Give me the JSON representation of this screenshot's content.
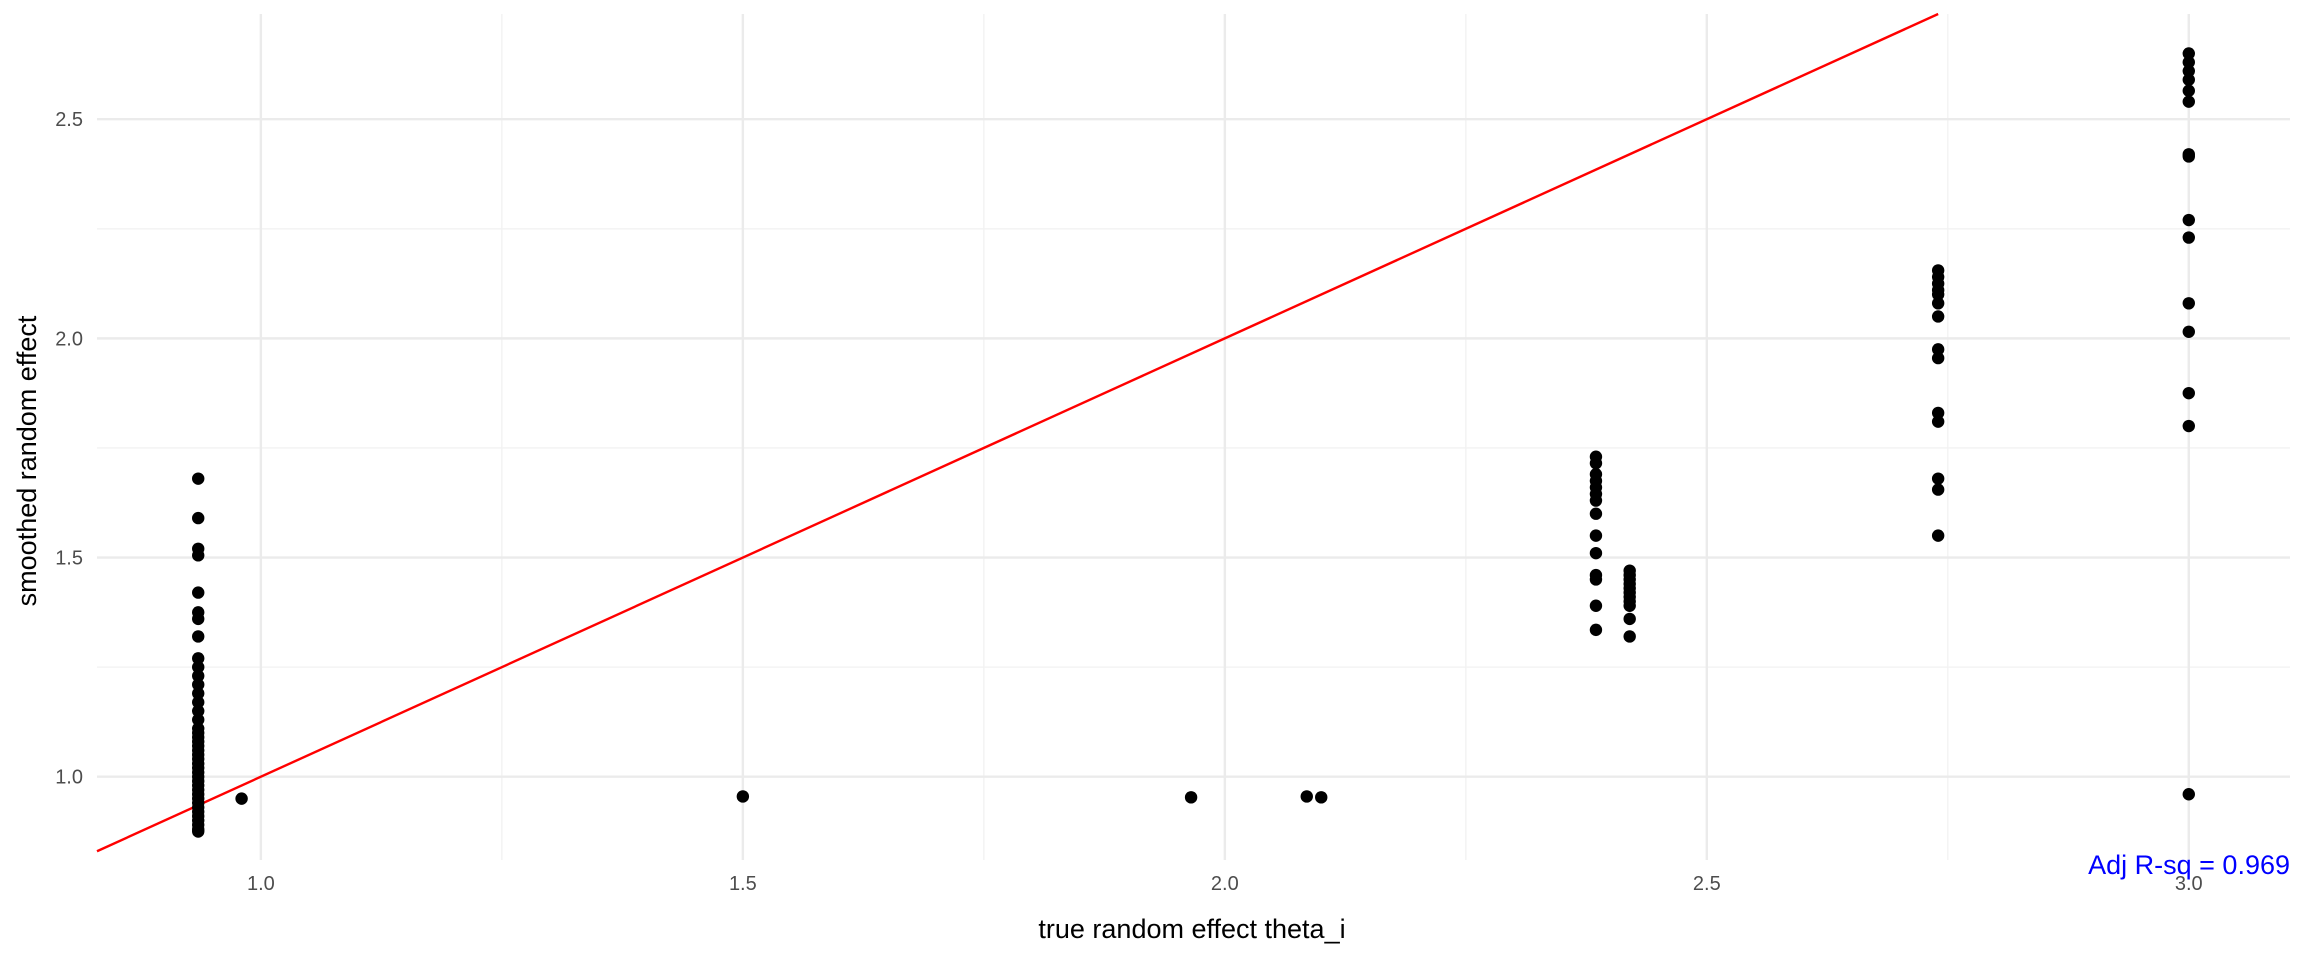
{
  "chart_data": {
    "type": "scatter",
    "xlabel": "true random effect theta_i",
    "ylabel": "smoothed random effect",
    "xlim": [
      0.83,
      3.105
    ],
    "ylim": [
      0.81,
      2.74
    ],
    "x_ticks": [
      1.0,
      1.5,
      2.0,
      2.5,
      3.0
    ],
    "x_tick_labels": [
      "1.0",
      "1.5",
      "2.0",
      "2.5",
      "3.0"
    ],
    "y_ticks": [
      1.0,
      1.5,
      2.0,
      2.5
    ],
    "y_tick_labels": [
      "1.0",
      "1.5",
      "2.0",
      "2.5"
    ],
    "grid": true,
    "reference_line": {
      "kind": "identity",
      "intercept": 0,
      "slope": 1,
      "color": "#ff0000"
    },
    "annotation": {
      "text": "Adj R-sq = 0.969",
      "color": "#0000ff",
      "position": "bottom-right"
    },
    "point_color": "#000000",
    "points": [
      [
        0.935,
        1.68
      ],
      [
        0.935,
        1.59
      ],
      [
        0.935,
        1.52
      ],
      [
        0.935,
        1.505
      ],
      [
        0.935,
        1.42
      ],
      [
        0.935,
        1.375
      ],
      [
        0.935,
        1.36
      ],
      [
        0.935,
        1.32
      ],
      [
        0.935,
        1.27
      ],
      [
        0.935,
        1.25
      ],
      [
        0.935,
        1.23
      ],
      [
        0.935,
        1.21
      ],
      [
        0.935,
        1.19
      ],
      [
        0.935,
        1.17
      ],
      [
        0.935,
        1.15
      ],
      [
        0.935,
        1.13
      ],
      [
        0.935,
        1.11
      ],
      [
        0.935,
        1.1
      ],
      [
        0.935,
        1.09
      ],
      [
        0.935,
        1.08
      ],
      [
        0.935,
        1.07
      ],
      [
        0.935,
        1.06
      ],
      [
        0.935,
        1.05
      ],
      [
        0.935,
        1.04
      ],
      [
        0.935,
        1.03
      ],
      [
        0.935,
        1.02
      ],
      [
        0.935,
        1.01
      ],
      [
        0.935,
        1.0
      ],
      [
        0.935,
        0.99
      ],
      [
        0.935,
        0.98
      ],
      [
        0.935,
        0.97
      ],
      [
        0.935,
        0.96
      ],
      [
        0.935,
        0.95
      ],
      [
        0.935,
        0.94
      ],
      [
        0.935,
        0.93
      ],
      [
        0.935,
        0.92
      ],
      [
        0.935,
        0.91
      ],
      [
        0.935,
        0.9
      ],
      [
        0.935,
        0.89
      ],
      [
        0.935,
        0.88
      ],
      [
        0.935,
        0.875
      ],
      [
        0.98,
        0.95
      ],
      [
        1.5,
        0.955
      ],
      [
        1.965,
        0.953
      ],
      [
        2.085,
        0.955
      ],
      [
        2.1,
        0.953
      ],
      [
        2.385,
        1.73
      ],
      [
        2.385,
        1.715
      ],
      [
        2.385,
        1.69
      ],
      [
        2.385,
        1.675
      ],
      [
        2.385,
        1.66
      ],
      [
        2.385,
        1.645
      ],
      [
        2.385,
        1.63
      ],
      [
        2.385,
        1.6
      ],
      [
        2.385,
        1.55
      ],
      [
        2.385,
        1.51
      ],
      [
        2.385,
        1.46
      ],
      [
        2.385,
        1.45
      ],
      [
        2.385,
        1.39
      ],
      [
        2.385,
        1.335
      ],
      [
        2.42,
        1.47
      ],
      [
        2.42,
        1.46
      ],
      [
        2.42,
        1.45
      ],
      [
        2.42,
        1.44
      ],
      [
        2.42,
        1.43
      ],
      [
        2.42,
        1.42
      ],
      [
        2.42,
        1.41
      ],
      [
        2.42,
        1.4
      ],
      [
        2.42,
        1.39
      ],
      [
        2.42,
        1.36
      ],
      [
        2.42,
        1.32
      ],
      [
        2.74,
        2.155
      ],
      [
        2.74,
        2.14
      ],
      [
        2.74,
        2.125
      ],
      [
        2.74,
        2.11
      ],
      [
        2.74,
        2.1
      ],
      [
        2.74,
        2.08
      ],
      [
        2.74,
        2.05
      ],
      [
        2.74,
        1.975
      ],
      [
        2.74,
        1.955
      ],
      [
        2.74,
        1.83
      ],
      [
        2.74,
        1.81
      ],
      [
        2.74,
        1.68
      ],
      [
        2.74,
        1.655
      ],
      [
        2.74,
        1.55
      ],
      [
        3.0,
        2.65
      ],
      [
        3.0,
        2.63
      ],
      [
        3.0,
        2.61
      ],
      [
        3.0,
        2.59
      ],
      [
        3.0,
        2.565
      ],
      [
        3.0,
        2.54
      ],
      [
        3.0,
        2.42
      ],
      [
        3.0,
        2.415
      ],
      [
        3.0,
        2.27
      ],
      [
        3.0,
        2.23
      ],
      [
        3.0,
        2.08
      ],
      [
        3.0,
        2.015
      ],
      [
        3.0,
        1.875
      ],
      [
        3.0,
        1.8
      ],
      [
        3.0,
        0.96
      ]
    ]
  }
}
